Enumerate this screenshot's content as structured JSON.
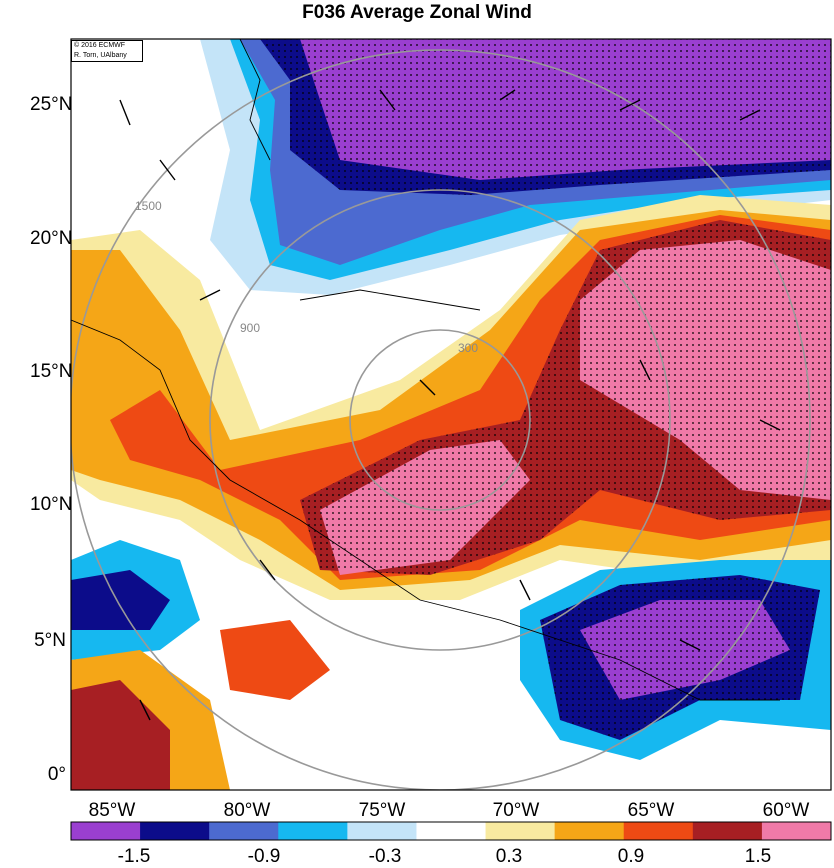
{
  "title": "F036 Average Zonal Wind",
  "credit": {
    "line1": "© 2016 ECMWF",
    "line2": "R. Torn, UAlbany"
  },
  "lat_labels": [
    "25°N",
    "20°N",
    "15°N",
    "10°N",
    "5°N",
    "0°"
  ],
  "lon_labels": [
    "85°W",
    "80°W",
    "75°W",
    "70°W",
    "65°W",
    "60°W"
  ],
  "contour_labels": [
    "300",
    "900",
    "1500"
  ],
  "colorbar": {
    "labels": [
      "-1.5",
      "-0.9",
      "-0.3",
      "0.3",
      "0.9",
      "1.5"
    ],
    "colors": [
      "#9a3fd0",
      "#0c0c8a",
      "#4c6ad0",
      "#16b8f0",
      "#c4e4f8",
      "#ffffff",
      "#f8eaa0",
      "#f5a617",
      "#ee4a14",
      "#a71f23",
      "#f07aa8"
    ]
  }
}
